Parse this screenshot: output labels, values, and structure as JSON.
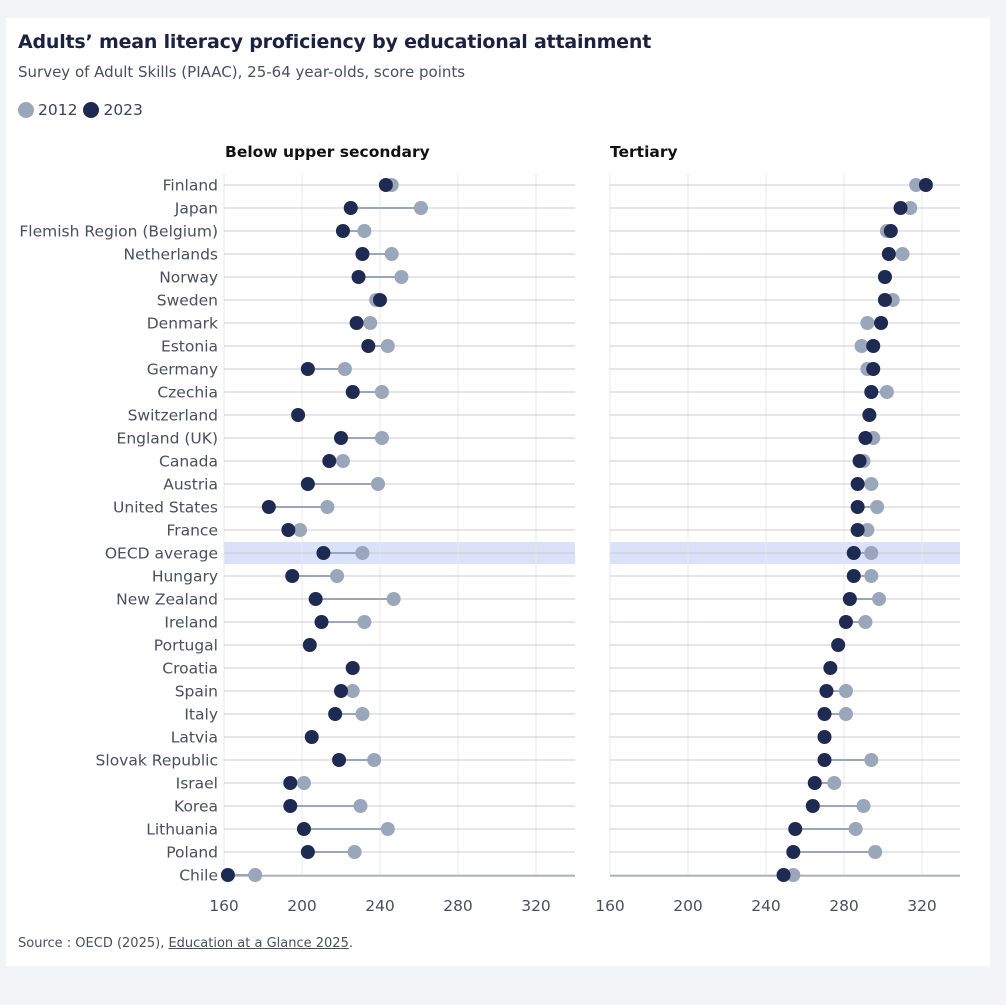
{
  "title": "Adults’ mean literacy proficiency by educational attainment",
  "subtitle": "Survey of Adult Skills (PIAAC), 25-64 year-olds, score points",
  "legend": [
    {
      "label": "2012",
      "color": "#9aa6b9"
    },
    {
      "label": "2023",
      "color": "#1f2a52"
    }
  ],
  "source": {
    "prefix": "Source : OECD (2025), ",
    "link": "Education at a Glance 2025",
    "suffix": "."
  },
  "colors": {
    "y2012": "#9aa6b9",
    "y2023": "#1f2a52",
    "highlight": "#d9e2f8",
    "grid": "#c9ccd3",
    "connector": "#9aa6b9"
  },
  "chart_data": {
    "type": "dumbbell",
    "highlight": "OECD average",
    "xlim": [
      160,
      340
    ],
    "ticks": [
      160,
      200,
      240,
      280,
      320
    ],
    "countries": [
      "Finland",
      "Japan",
      "Flemish Region (Belgium)",
      "Netherlands",
      "Norway",
      "Sweden",
      "Denmark",
      "Estonia",
      "Germany",
      "Czechia",
      "Switzerland",
      "England (UK)",
      "Canada",
      "Austria",
      "United States",
      "France",
      "OECD average",
      "Hungary",
      "New Zealand",
      "Ireland",
      "Portugal",
      "Croatia",
      "Spain",
      "Italy",
      "Latvia",
      "Slovak Republic",
      "Israel",
      "Korea",
      "Lithuania",
      "Poland",
      "Chile"
    ],
    "panels": [
      {
        "title": "Below upper secondary",
        "y2012": [
          246,
          261,
          232,
          246,
          251,
          238,
          235,
          244,
          222,
          241,
          null,
          241,
          221,
          239,
          213,
          199,
          231,
          218,
          247,
          232,
          null,
          null,
          226,
          231,
          null,
          237,
          201,
          230,
          244,
          227,
          176
        ],
        "y2023": [
          243,
          225,
          221,
          231,
          229,
          240,
          228,
          234,
          203,
          226,
          198,
          220,
          214,
          203,
          183,
          193,
          211,
          195,
          207,
          210,
          204,
          226,
          220,
          217,
          205,
          219,
          194,
          194,
          201,
          203,
          162
        ]
      },
      {
        "title": "Tertiary",
        "y2012": [
          317,
          314,
          302,
          310,
          301,
          305,
          292,
          289,
          292,
          302,
          null,
          295,
          290,
          294,
          297,
          292,
          294,
          294,
          298,
          291,
          null,
          null,
          281,
          281,
          null,
          294,
          275,
          290,
          286,
          296,
          254
        ],
        "y2023": [
          322,
          309,
          304,
          303,
          301,
          301,
          299,
          295,
          295,
          294,
          293,
          291,
          288,
          287,
          287,
          287,
          285,
          285,
          283,
          281,
          277,
          273,
          271,
          270,
          270,
          270,
          265,
          264,
          255,
          254,
          249
        ]
      }
    ]
  }
}
